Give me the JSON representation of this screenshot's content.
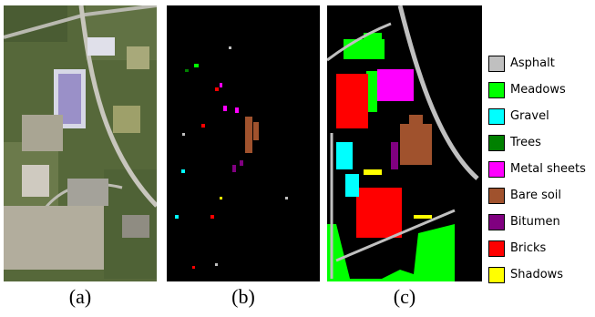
{
  "captions": {
    "a": "(a)",
    "b": "(b)",
    "c": "(c)"
  },
  "legend": [
    {
      "label": "Asphalt",
      "color": "#c0c0c0"
    },
    {
      "label": "Meadows",
      "color": "#00ff00"
    },
    {
      "label": "Gravel",
      "color": "#00ffff"
    },
    {
      "label": "Trees",
      "color": "#008000"
    },
    {
      "label": "Metal sheets",
      "color": "#ff00ff"
    },
    {
      "label": "Bare soil",
      "color": "#a0522d"
    },
    {
      "label": "Bitumen",
      "color": "#800080"
    },
    {
      "label": "Bricks",
      "color": "#ff0000"
    },
    {
      "label": "Shadows",
      "color": "#ffff00"
    }
  ]
}
